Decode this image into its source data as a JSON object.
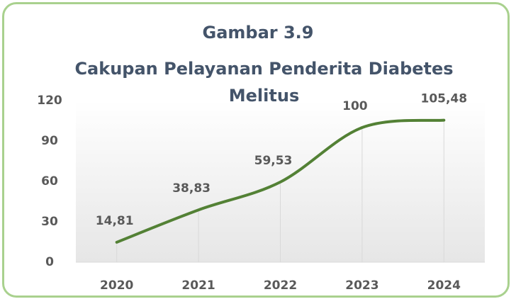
{
  "chart_data": {
    "type": "line",
    "title": "Gambar 3.9",
    "subtitle": "Cakupan Pelayanan Penderita Diabetes Melitus",
    "categories": [
      "2020",
      "2021",
      "2022",
      "2023",
      "2024"
    ],
    "values": [
      14.81,
      38.83,
      59.53,
      100,
      105.48
    ],
    "value_labels": [
      "14,81",
      "38,83",
      "59,53",
      "100",
      "105,48"
    ],
    "color": "#538135",
    "ylim": [
      0,
      120
    ],
    "yticks": [
      0,
      30,
      60,
      90,
      120
    ],
    "smooth": true
  }
}
